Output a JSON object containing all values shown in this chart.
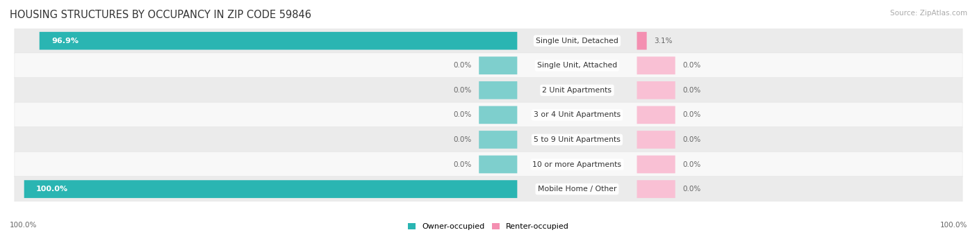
{
  "title": "HOUSING STRUCTURES BY OCCUPANCY IN ZIP CODE 59846",
  "source": "Source: ZipAtlas.com",
  "categories": [
    "Single Unit, Detached",
    "Single Unit, Attached",
    "2 Unit Apartments",
    "3 or 4 Unit Apartments",
    "5 to 9 Unit Apartments",
    "10 or more Apartments",
    "Mobile Home / Other"
  ],
  "owner_values": [
    96.9,
    0.0,
    0.0,
    0.0,
    0.0,
    0.0,
    100.0
  ],
  "renter_values": [
    3.1,
    0.0,
    0.0,
    0.0,
    0.0,
    0.0,
    0.0
  ],
  "owner_color": "#2ab5b2",
  "renter_color": "#f48fb1",
  "owner_stub_color": "#7ecfcd",
  "renter_stub_color": "#f9c0d4",
  "row_bg_odd": "#ebebeb",
  "row_bg_even": "#f8f8f8",
  "label_color": "#666666",
  "title_color": "#333333",
  "white_text_color": "#ffffff",
  "owner_label": "Owner-occupied",
  "renter_label": "Renter-occupied",
  "figsize": [
    14.06,
    3.41
  ],
  "dpi": 100,
  "source_color": "#aaaaaa"
}
